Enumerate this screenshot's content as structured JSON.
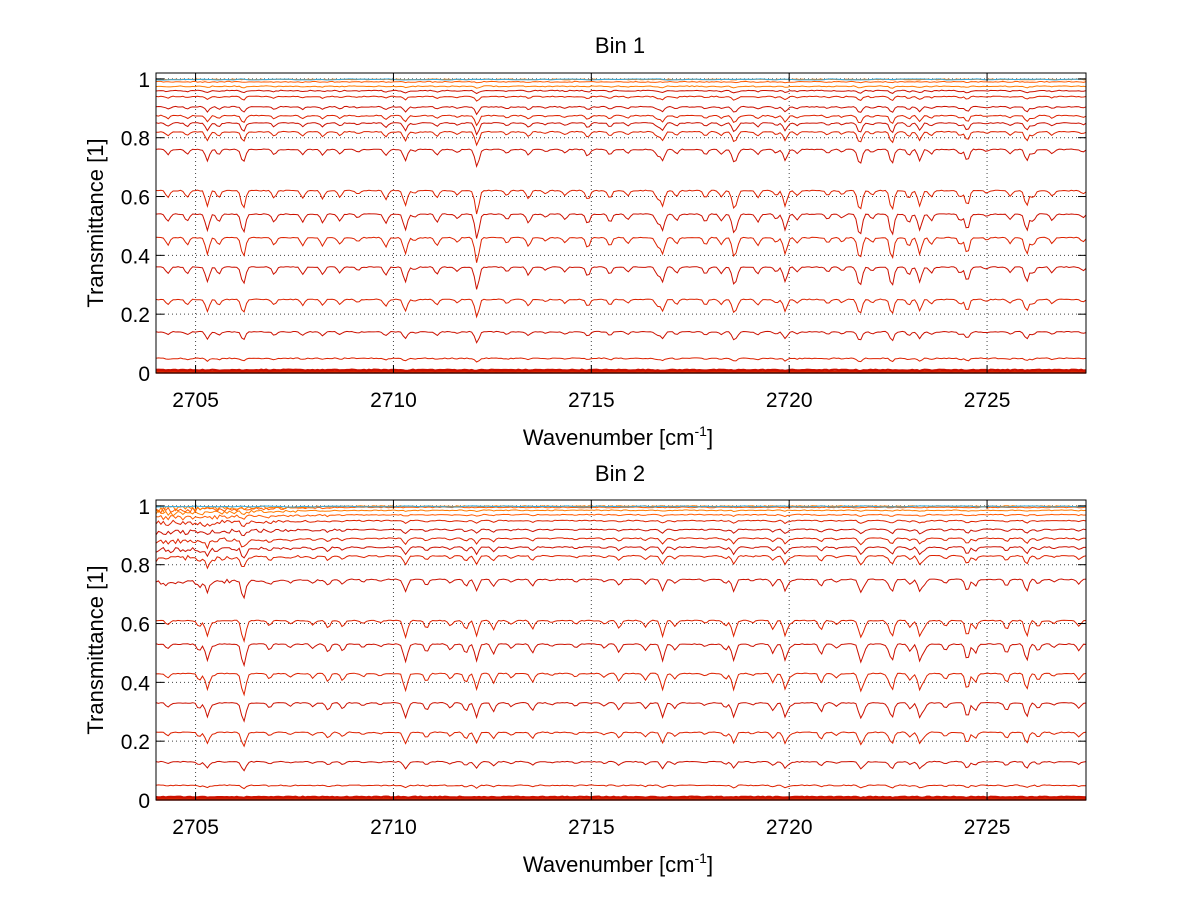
{
  "chart_data": [
    {
      "type": "line",
      "title": "Bin 1",
      "xlabel": "Wavenumber [cm",
      "xlabel_sup": "-1",
      "xlabel_end": "]",
      "ylabel": "Transmittance [1]",
      "xlim": [
        2704,
        2727.5
      ],
      "ylim": [
        0,
        1.02
      ],
      "xticks": [
        2705,
        2710,
        2715,
        2720,
        2725
      ],
      "xtick_labels": [
        "2705",
        "2710",
        "2715",
        "2720",
        "2725"
      ],
      "yticks": [
        0,
        0.2,
        0.4,
        0.6,
        0.8,
        1
      ],
      "ytick_labels": [
        "0",
        "0.2",
        "0.4",
        "0.6",
        "0.8",
        "1"
      ],
      "grid": "dotted",
      "series_colors": [
        "#cc1100",
        "#dd2200",
        "#ff5a00",
        "#ff7a00",
        "#33aadd"
      ],
      "baselines": [
        0.0,
        0.005,
        0.01,
        0.05,
        0.14,
        0.25,
        0.36,
        0.46,
        0.54,
        0.62,
        0.76,
        0.82,
        0.85,
        0.875,
        0.905,
        0.94,
        0.96,
        0.975,
        0.99,
        0.998
      ]
    },
    {
      "type": "line",
      "title": "Bin 2",
      "xlabel": "Wavenumber [cm",
      "xlabel_sup": "-1",
      "xlabel_end": "]",
      "ylabel": "Transmittance [1]",
      "xlim": [
        2704,
        2727.5
      ],
      "ylim": [
        0,
        1.02
      ],
      "xticks": [
        2705,
        2710,
        2715,
        2720,
        2725
      ],
      "xtick_labels": [
        "2705",
        "2710",
        "2715",
        "2720",
        "2725"
      ],
      "yticks": [
        0,
        0.2,
        0.4,
        0.6,
        0.8,
        1
      ],
      "ytick_labels": [
        "0",
        "0.2",
        "0.4",
        "0.6",
        "0.8",
        "1"
      ],
      "grid": "dotted",
      "series_colors": [
        "#cc1100",
        "#dd2200",
        "#ff5a00",
        "#ff7a00",
        "#33aadd"
      ],
      "baselines": [
        0.0,
        0.005,
        0.01,
        0.05,
        0.13,
        0.23,
        0.33,
        0.43,
        0.53,
        0.61,
        0.75,
        0.83,
        0.86,
        0.89,
        0.92,
        0.95,
        0.97,
        0.985,
        0.995,
        0.999
      ]
    }
  ]
}
